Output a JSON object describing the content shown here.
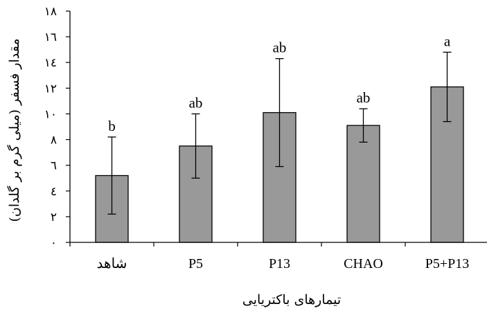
{
  "chart_data": {
    "type": "bar",
    "categories": [
      "شاهد",
      "P5",
      "P13",
      "CHAO",
      "P5+P13"
    ],
    "values": [
      5.2,
      7.5,
      10.1,
      9.1,
      12.1
    ],
    "errors": [
      3.0,
      2.5,
      4.2,
      1.3,
      2.7
    ],
    "significance": [
      "b",
      "ab",
      "ab",
      "ab",
      "a"
    ],
    "y_ticks": [
      0,
      2,
      4,
      6,
      8,
      10,
      12,
      14,
      16,
      18
    ],
    "y_tick_labels": [
      "۰",
      "۲",
      "٤",
      "٦",
      "٨",
      "۱۰",
      "۱۲",
      "۱٤",
      "۱٦",
      "۱۸"
    ],
    "ylim": [
      0,
      18
    ],
    "xlabel": "تیمارهای باکتریایی",
    "ylabel": "مقدار فسفر (میلی گرم بر گلدان)",
    "title": "",
    "grid": false,
    "bar_color": "#999999",
    "edge_color": "#000000"
  }
}
